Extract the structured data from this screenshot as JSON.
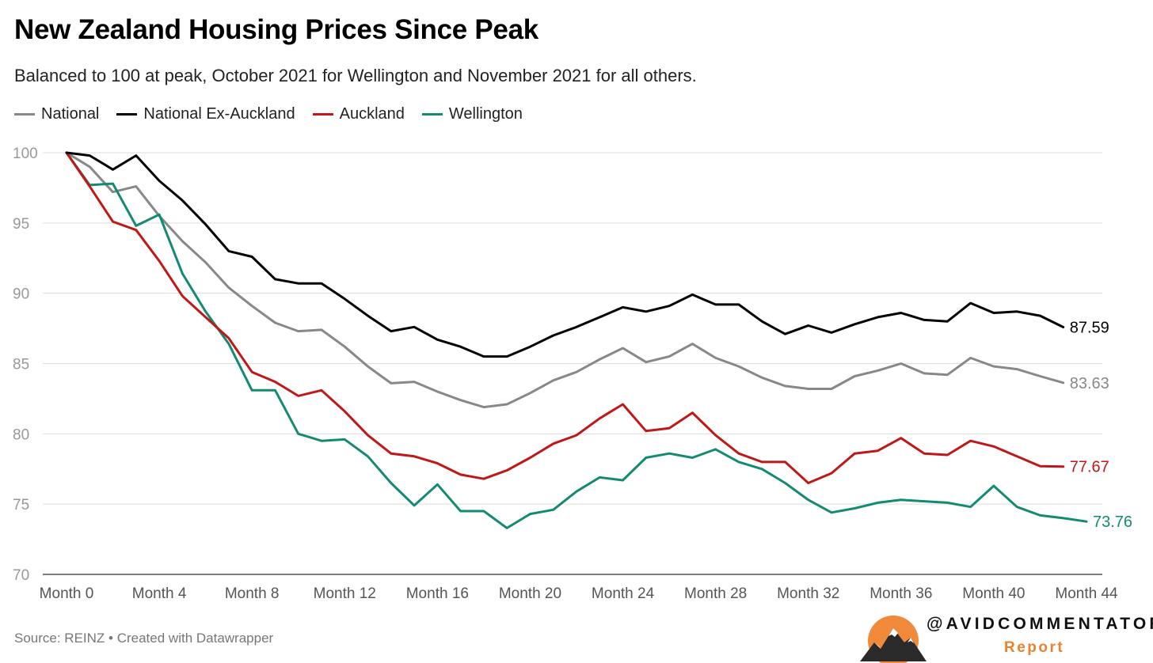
{
  "title": "New Zealand Housing Prices Since Peak",
  "subtitle": "Balanced to 100 at peak, October 2021 for Wellington and November 2021 for all others.",
  "source": "Source: REINZ • Created with Datawrapper",
  "brand": {
    "handle": "@AVIDCOMMENTATOR",
    "sub": "Report",
    "logo_icon": "mountain-sun-logo-icon"
  },
  "chart_data": {
    "type": "line",
    "x": [
      0,
      1,
      2,
      3,
      4,
      5,
      6,
      7,
      8,
      9,
      10,
      11,
      12,
      13,
      14,
      15,
      16,
      17,
      18,
      19,
      20,
      21,
      22,
      23,
      24,
      25,
      26,
      27,
      28,
      29,
      30,
      31,
      32,
      33,
      34,
      35,
      36,
      37,
      38,
      39,
      40,
      41,
      42,
      43,
      44
    ],
    "x_ticks": [
      "Month 0",
      "Month 4",
      "Month 8",
      "Month 12",
      "Month 16",
      "Month 20",
      "Month 24",
      "Month 28",
      "Month 32",
      "Month 36",
      "Month 40",
      "Month 44"
    ],
    "y_ticks": [
      100,
      95,
      90,
      85,
      80,
      75,
      70
    ],
    "ylim": [
      70,
      100
    ],
    "grid": true,
    "legend_position": "top-left",
    "series": [
      {
        "name": "National",
        "color": "#888888",
        "values": [
          100,
          99.0,
          97.2,
          97.6,
          95.5,
          93.7,
          92.2,
          90.4,
          89.1,
          87.9,
          87.3,
          87.4,
          86.2,
          84.8,
          83.6,
          83.7,
          83.0,
          82.4,
          81.9,
          82.1,
          82.9,
          83.8,
          84.4,
          85.3,
          86.1,
          85.1,
          85.5,
          86.4,
          85.4,
          84.8,
          84.0,
          83.4,
          83.2,
          83.2,
          84.1,
          84.5,
          85.0,
          84.3,
          84.2,
          85.4,
          84.8,
          84.6,
          84.1,
          83.63,
          null
        ],
        "end_label": "83.63"
      },
      {
        "name": "National Ex-Auckland",
        "color": "#000000",
        "values": [
          100,
          99.8,
          98.8,
          99.8,
          98.0,
          96.6,
          94.9,
          93.0,
          92.6,
          91.0,
          90.7,
          90.7,
          89.6,
          88.4,
          87.3,
          87.6,
          86.7,
          86.2,
          85.5,
          85.5,
          86.2,
          87.0,
          87.6,
          88.3,
          89.0,
          88.7,
          89.1,
          89.9,
          89.2,
          89.2,
          88.0,
          87.1,
          87.7,
          87.2,
          87.8,
          88.3,
          88.6,
          88.1,
          88.0,
          89.3,
          88.6,
          88.7,
          88.4,
          87.59,
          null
        ],
        "end_label": "87.59"
      },
      {
        "name": "Auckland",
        "color": "#c01818",
        "values": [
          100,
          97.6,
          95.1,
          94.5,
          92.3,
          89.8,
          88.3,
          86.8,
          84.4,
          83.7,
          82.7,
          83.1,
          81.6,
          79.9,
          78.6,
          78.4,
          77.9,
          77.1,
          76.8,
          77.4,
          78.3,
          79.3,
          79.9,
          81.1,
          82.1,
          80.2,
          80.4,
          81.5,
          79.9,
          78.6,
          78.0,
          78.0,
          76.5,
          77.2,
          78.6,
          78.8,
          79.7,
          78.6,
          78.5,
          79.5,
          79.1,
          78.4,
          77.7,
          77.67,
          null
        ],
        "end_label": "77.67"
      },
      {
        "name": "Wellington",
        "color": "#158a72",
        "values": [
          100,
          97.7,
          97.8,
          94.8,
          95.6,
          91.4,
          88.7,
          86.4,
          83.1,
          83.1,
          80.0,
          79.5,
          79.6,
          78.4,
          76.5,
          74.9,
          76.4,
          74.5,
          74.5,
          73.3,
          74.3,
          74.6,
          75.9,
          76.9,
          76.7,
          78.3,
          78.6,
          78.3,
          78.9,
          78.0,
          77.5,
          76.5,
          75.3,
          74.4,
          74.7,
          75.1,
          75.3,
          75.2,
          75.1,
          74.8,
          76.3,
          74.8,
          74.2,
          74.0,
          73.76
        ],
        "end_label": "73.76"
      }
    ]
  }
}
